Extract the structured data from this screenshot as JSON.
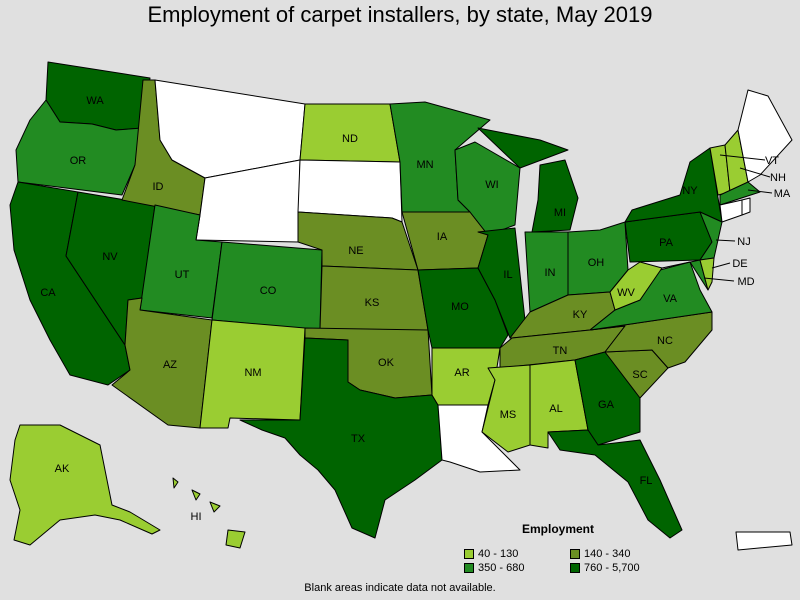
{
  "title": "Employment of carpet installers, by state, May 2019",
  "legend": {
    "title": "Employment",
    "items": [
      {
        "label": "40 - 130",
        "color": "#9acd32"
      },
      {
        "label": "140 - 340",
        "color": "#6b8e23"
      },
      {
        "label": "350 - 680",
        "color": "#228b22"
      },
      {
        "label": "760 - 5,700",
        "color": "#006400"
      }
    ]
  },
  "no_data_color": "#ffffff",
  "note": "Blank areas indicate data not available.",
  "states": [
    {
      "abbr": "WA",
      "category": 3
    },
    {
      "abbr": "OR",
      "category": 2
    },
    {
      "abbr": "CA",
      "category": 3
    },
    {
      "abbr": "NV",
      "category": 3
    },
    {
      "abbr": "ID",
      "category": 1
    },
    {
      "abbr": "MT",
      "category": null
    },
    {
      "abbr": "WY",
      "category": null
    },
    {
      "abbr": "UT",
      "category": 2
    },
    {
      "abbr": "CO",
      "category": 2
    },
    {
      "abbr": "AZ",
      "category": 1
    },
    {
      "abbr": "NM",
      "category": 0
    },
    {
      "abbr": "ND",
      "category": 0
    },
    {
      "abbr": "SD",
      "category": null
    },
    {
      "abbr": "NE",
      "category": 1
    },
    {
      "abbr": "KS",
      "category": 1
    },
    {
      "abbr": "OK",
      "category": 1
    },
    {
      "abbr": "TX",
      "category": 3
    },
    {
      "abbr": "MN",
      "category": 2
    },
    {
      "abbr": "IA",
      "category": 1
    },
    {
      "abbr": "MO",
      "category": 3
    },
    {
      "abbr": "AR",
      "category": 0
    },
    {
      "abbr": "LA",
      "category": null
    },
    {
      "abbr": "WI",
      "category": 2
    },
    {
      "abbr": "IL",
      "category": 3
    },
    {
      "abbr": "MI",
      "category": 3
    },
    {
      "abbr": "IN",
      "category": 2
    },
    {
      "abbr": "OH",
      "category": 2
    },
    {
      "abbr": "KY",
      "category": 1
    },
    {
      "abbr": "TN",
      "category": 1
    },
    {
      "abbr": "MS",
      "category": 0
    },
    {
      "abbr": "AL",
      "category": 0
    },
    {
      "abbr": "GA",
      "category": 3
    },
    {
      "abbr": "FL",
      "category": 3
    },
    {
      "abbr": "SC",
      "category": 1
    },
    {
      "abbr": "NC",
      "category": 1
    },
    {
      "abbr": "VA",
      "category": 2
    },
    {
      "abbr": "WV",
      "category": 0
    },
    {
      "abbr": "PA",
      "category": 3
    },
    {
      "abbr": "NY",
      "category": 3
    },
    {
      "abbr": "NJ",
      "category": 2
    },
    {
      "abbr": "DE",
      "category": 0
    },
    {
      "abbr": "MD",
      "category": 2
    },
    {
      "abbr": "VT",
      "category": 0
    },
    {
      "abbr": "NH",
      "category": 0
    },
    {
      "abbr": "MA",
      "category": 2
    },
    {
      "abbr": "CT",
      "category": null
    },
    {
      "abbr": "RI",
      "category": null
    },
    {
      "abbr": "ME",
      "category": null
    },
    {
      "abbr": "AK",
      "category": 0
    },
    {
      "abbr": "HI",
      "category": 0
    },
    {
      "abbr": "PR",
      "category": null
    }
  ]
}
